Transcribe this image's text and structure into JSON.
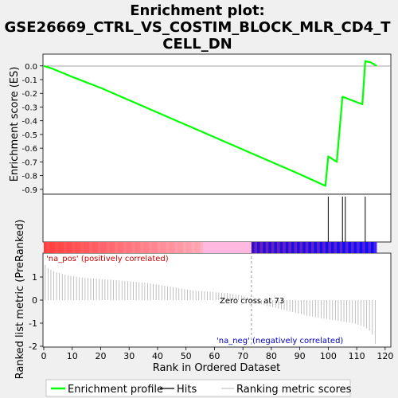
{
  "chart_data": [
    {
      "type": "line",
      "title": "Enrichment plot: GSE26669_CTRL_VS_COSTIM_BLOCK_MLR_CD4_TCELL_DN",
      "title_lines": [
        "Enrichment plot:",
        "GSE26669_CTRL_VS_COSTIM_BLOCK_MLR_CD4_T",
        "CELL_DN"
      ],
      "ylabel": "Enrichment score (ES)",
      "xlim": [
        0,
        122
      ],
      "ylim": [
        -0.93,
        0.08
      ],
      "y_ticks": [
        0.0,
        -0.1,
        -0.2,
        -0.3,
        -0.4,
        -0.5,
        -0.6,
        -0.7,
        -0.8,
        -0.9
      ],
      "y_tick_labels": [
        "0.0",
        "-0.1",
        "-0.2",
        "-0.3",
        "-0.4",
        "-0.5",
        "-0.6",
        "-0.7",
        "-0.8",
        "-0.9"
      ],
      "color": "#00ff00",
      "series": [
        {
          "name": "Enrichment profile",
          "x": [
            0,
            3,
            10,
            20,
            30,
            40,
            50,
            60,
            70,
            80,
            90,
            99,
            100,
            103,
            105,
            112,
            113,
            115,
            117
          ],
          "y": [
            0.0,
            -0.02,
            -0.08,
            -0.16,
            -0.25,
            -0.34,
            -0.43,
            -0.52,
            -0.61,
            -0.7,
            -0.79,
            -0.875,
            -0.66,
            -0.7,
            -0.225,
            -0.28,
            0.035,
            0.025,
            0.0
          ]
        }
      ]
    },
    {
      "type": "bar",
      "label": "Hits",
      "hit_positions": [
        100,
        105,
        106,
        113
      ],
      "color": "#000000"
    },
    {
      "type": "heatmap",
      "xlim": [
        0,
        117
      ],
      "zero_cross": 73,
      "high_color": "#ff0000",
      "low_color": "#0000ff"
    },
    {
      "type": "bar",
      "ylabel": "Ranked list metric (PreRanked)",
      "xlabel": "Rank in Ordered Dataset",
      "xlim": [
        0,
        122
      ],
      "ylim": [
        -2,
        2
      ],
      "x_ticks": [
        0,
        10,
        20,
        30,
        40,
        50,
        60,
        70,
        80,
        90,
        100,
        110,
        120
      ],
      "y_ticks": [
        -2,
        -1,
        0,
        1
      ],
      "zero_cross_rank": 73,
      "values": [
        1.52,
        1.38,
        1.32,
        1.26,
        1.21,
        1.17,
        1.13,
        1.1,
        1.07,
        1.05,
        1.03,
        1.01,
        0.99,
        0.98,
        0.97,
        0.96,
        0.95,
        0.94,
        0.93,
        0.92,
        0.91,
        0.9,
        0.89,
        0.88,
        0.87,
        0.86,
        0.85,
        0.84,
        0.83,
        0.82,
        0.81,
        0.8,
        0.79,
        0.78,
        0.76,
        0.75,
        0.74,
        0.72,
        0.7,
        0.68,
        0.66,
        0.64,
        0.62,
        0.6,
        0.58,
        0.56,
        0.54,
        0.52,
        0.5,
        0.48,
        0.46,
        0.44,
        0.42,
        0.41,
        0.4,
        0.39,
        0.38,
        0.37,
        0.36,
        0.35,
        0.34,
        0.33,
        0.32,
        0.31,
        0.3,
        0.28,
        0.26,
        0.24,
        0.22,
        0.2,
        0.17,
        0.13,
        0.08,
        -0.05,
        -0.1,
        -0.14,
        -0.18,
        -0.22,
        -0.25,
        -0.28,
        -0.31,
        -0.34,
        -0.37,
        -0.4,
        -0.43,
        -0.46,
        -0.49,
        -0.52,
        -0.55,
        -0.58,
        -0.61,
        -0.64,
        -0.67,
        -0.7,
        -0.72,
        -0.74,
        -0.76,
        -0.78,
        -0.8,
        -0.82,
        -0.84,
        -0.86,
        -0.88,
        -0.9,
        -0.92,
        -0.94,
        -0.96,
        -0.98,
        -1.0,
        -1.03,
        -1.06,
        -1.1,
        -1.15,
        -1.22,
        -1.32,
        -1.5,
        -1.9
      ],
      "annotations": {
        "pos": "'na_pos' (positively correlated)",
        "zero": "Zero cross at 73",
        "neg": "'na_neg' (negatively correlated)"
      }
    }
  ],
  "legend": {
    "placement": "bottom",
    "items": [
      {
        "label": "Enrichment profile",
        "color": "#00ff00"
      },
      {
        "label": "Hits",
        "color": "#000000"
      },
      {
        "label": "Ranking metric scores",
        "color": "#c0c0c0"
      }
    ]
  }
}
